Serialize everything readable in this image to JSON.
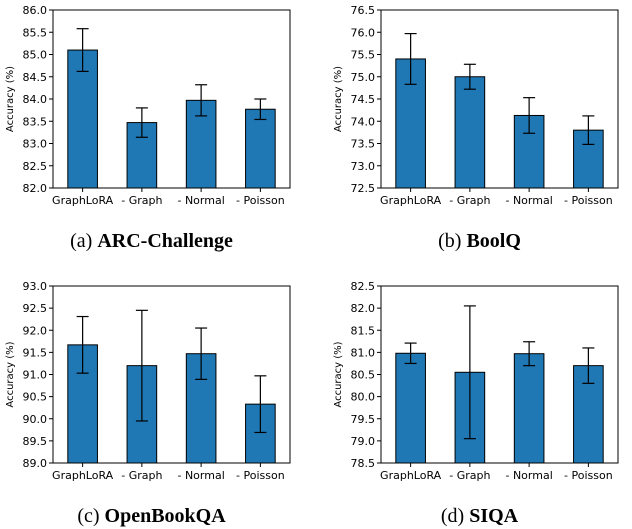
{
  "chart_data": [
    {
      "type": "bar",
      "caption_prefix": "(a)",
      "caption_title": "ARC-Challenge",
      "ylabel": "Accuracy (%)",
      "categories": [
        "GraphLoRA",
        "- Graph",
        "- Normal",
        "- Poisson"
      ],
      "values": [
        85.1,
        83.47,
        83.97,
        83.77
      ],
      "errors": [
        0.48,
        0.33,
        0.35,
        0.23
      ],
      "ylim": [
        82.0,
        86.0
      ],
      "yticks": [
        "82.0",
        "82.5",
        "83.0",
        "83.5",
        "84.0",
        "84.5",
        "85.0",
        "85.5",
        "86.0"
      ],
      "bar_color": "#1f77b4"
    },
    {
      "type": "bar",
      "caption_prefix": "(b)",
      "caption_title": "BoolQ",
      "ylabel": "Accuracy (%)",
      "categories": [
        "GraphLoRA",
        "- Graph",
        "- Normal",
        "- Poisson"
      ],
      "values": [
        75.4,
        75.0,
        74.13,
        73.8
      ],
      "errors": [
        0.57,
        0.28,
        0.4,
        0.32
      ],
      "ylim": [
        72.5,
        76.5
      ],
      "yticks": [
        "72.5",
        "73.0",
        "73.5",
        "74.0",
        "74.5",
        "75.0",
        "75.5",
        "76.0",
        "76.5"
      ],
      "bar_color": "#1f77b4"
    },
    {
      "type": "bar",
      "caption_prefix": "(c)",
      "caption_title": "OpenBookQA",
      "ylabel": "Accuracy (%)",
      "categories": [
        "GraphLoRA",
        "- Graph",
        "- Normal",
        "- Poisson"
      ],
      "values": [
        91.67,
        91.2,
        91.47,
        90.33
      ],
      "errors": [
        0.64,
        1.25,
        0.58,
        0.64
      ],
      "ylim": [
        89.0,
        93.0
      ],
      "yticks": [
        "89.0",
        "89.5",
        "90.0",
        "90.5",
        "91.0",
        "91.5",
        "92.0",
        "92.5",
        "93.0"
      ],
      "bar_color": "#1f77b4"
    },
    {
      "type": "bar",
      "caption_prefix": "(d)",
      "caption_title": "SIQA",
      "ylabel": "Accuracy (%)",
      "categories": [
        "GraphLoRA",
        "- Graph",
        "- Normal",
        "- Poisson"
      ],
      "values": [
        80.98,
        80.55,
        80.97,
        80.7
      ],
      "errors": [
        0.23,
        1.5,
        0.27,
        0.4
      ],
      "ylim": [
        78.5,
        82.5
      ],
      "yticks": [
        "78.5",
        "79.0",
        "79.5",
        "80.0",
        "80.5",
        "81.0",
        "81.5",
        "82.0",
        "82.5"
      ],
      "bar_color": "#1f77b4"
    }
  ]
}
